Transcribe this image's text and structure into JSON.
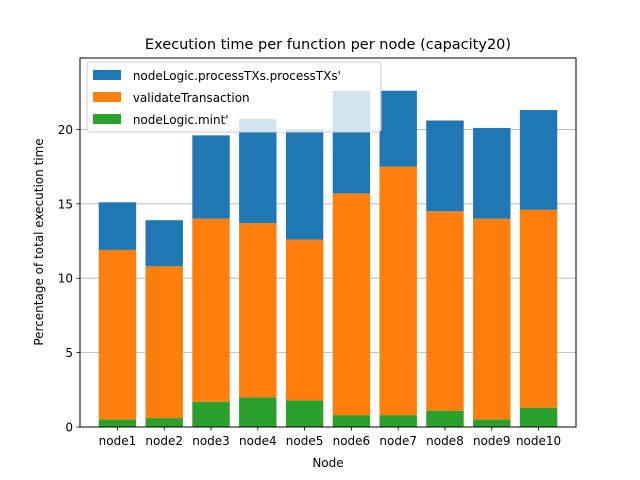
{
  "chart_data": {
    "type": "bar",
    "stacked": true,
    "title": "Execution time per function per node (capacity20)",
    "xlabel": "Node",
    "ylabel": "Percentage of total execution time",
    "categories": [
      "node1",
      "node2",
      "node3",
      "node4",
      "node5",
      "node6",
      "node7",
      "node8",
      "node9",
      "node10"
    ],
    "ylim": [
      0,
      24.8
    ],
    "yticks": [
      0,
      5,
      10,
      15,
      20
    ],
    "grid": "y",
    "legend_position": "top-left",
    "series": [
      {
        "name": " nodeLogic.mint'",
        "color": "#2ca02c",
        "values": [
          0.5,
          0.6,
          1.7,
          2.0,
          1.8,
          0.8,
          0.8,
          1.1,
          0.5,
          1.3
        ]
      },
      {
        "name": " validateTransaction",
        "color": "#ff7f0e",
        "values": [
          11.4,
          10.2,
          12.3,
          11.7,
          10.8,
          14.9,
          16.7,
          13.4,
          13.5,
          13.3
        ]
      },
      {
        "name": " nodeLogic.processTXs.processTXs'",
        "color": "#1f77b4",
        "values": [
          3.2,
          3.1,
          5.6,
          7.0,
          7.4,
          6.9,
          5.1,
          6.1,
          6.1,
          6.7
        ]
      }
    ],
    "legend_order": [
      2,
      1,
      0
    ]
  }
}
